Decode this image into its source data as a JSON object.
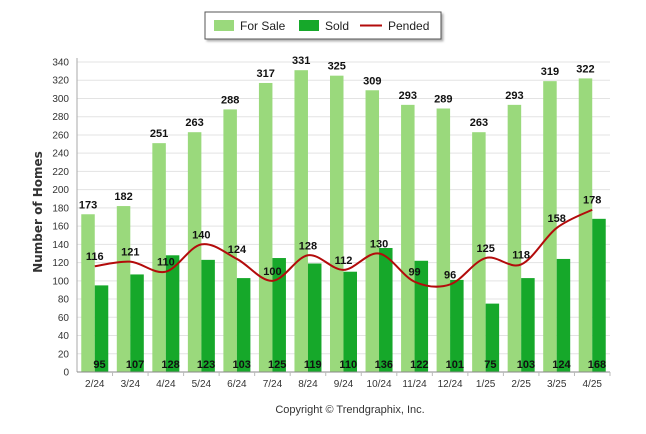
{
  "chart_data": {
    "type": "bar",
    "categories": [
      "2/24",
      "3/24",
      "4/24",
      "5/24",
      "6/24",
      "7/24",
      "8/24",
      "9/24",
      "10/24",
      "11/24",
      "12/24",
      "1/25",
      "2/25",
      "3/25",
      "4/25"
    ],
    "series": [
      {
        "name": "For Sale",
        "kind": "bar",
        "color": "#9ad97c",
        "values": [
          173,
          182,
          251,
          263,
          288,
          317,
          331,
          325,
          309,
          293,
          289,
          263,
          293,
          319,
          322
        ]
      },
      {
        "name": "Sold",
        "kind": "bar",
        "color": "#16a82a",
        "values": [
          95,
          107,
          128,
          123,
          103,
          125,
          119,
          110,
          136,
          122,
          101,
          75,
          103,
          124,
          168
        ]
      },
      {
        "name": "Pended",
        "kind": "line",
        "color": "#b30b0b",
        "values": [
          116,
          121,
          110,
          140,
          124,
          100,
          128,
          112,
          130,
          99,
          96,
          125,
          118,
          158,
          178
        ]
      }
    ],
    "title": "",
    "xlabel": "",
    "ylabel": "Number of Homes",
    "ylim": [
      0,
      340
    ],
    "yticks": [
      0,
      20,
      40,
      60,
      80,
      100,
      120,
      140,
      160,
      180,
      200,
      220,
      240,
      260,
      280,
      300,
      320,
      340
    ],
    "grid": true,
    "legend_position": "top-center"
  },
  "footer": {
    "credit": "Copyright © Trendgraphix, Inc."
  }
}
